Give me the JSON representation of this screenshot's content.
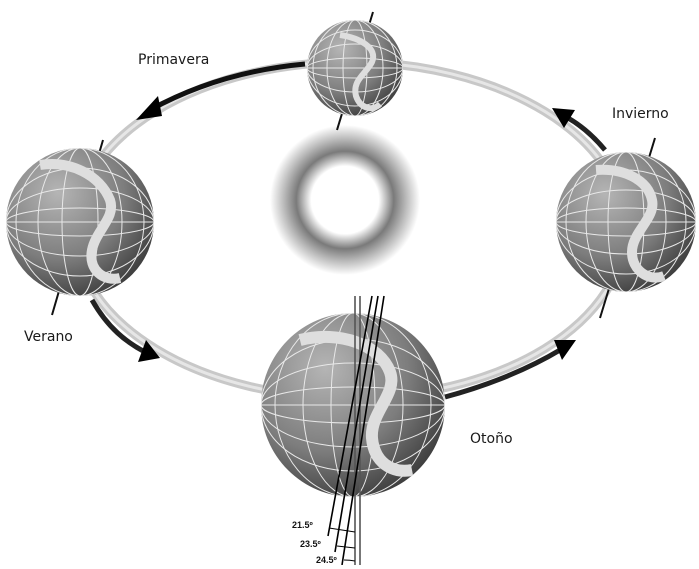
{
  "seasons": {
    "primavera": "Primavera",
    "invierno": "Invierno",
    "verano": "Verano",
    "otono": "Otoño"
  },
  "tilt_angles": [
    "21.5º",
    "23.5º",
    "24.5º"
  ],
  "colors": {
    "globe_ocean": "#8a8a8a",
    "globe_land": "#d9d9d9",
    "orbit": "#bdbdbd",
    "arrow": "#000000"
  },
  "icons": {
    "sun": "sun-glow-icon",
    "globe": "earth-globe-icon",
    "arrow": "orbit-direction-arrow-icon"
  }
}
